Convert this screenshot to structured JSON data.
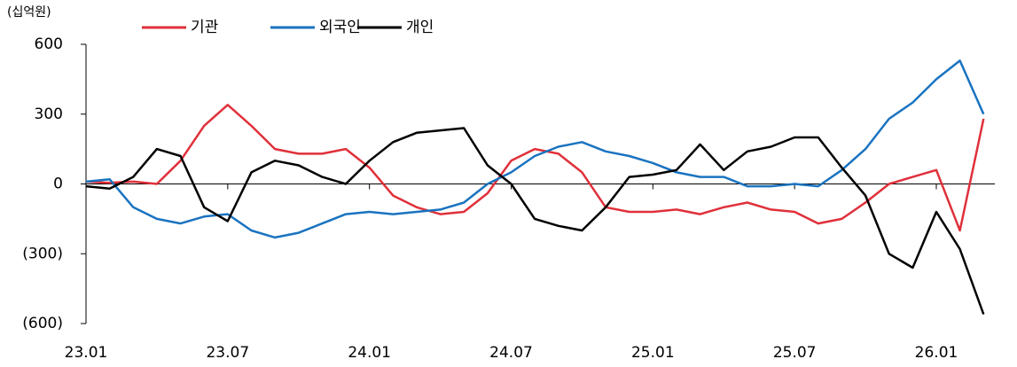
{
  "chart_data": {
    "type": "line",
    "unit": "(십억원)",
    "x": [
      "23.01",
      "23.02",
      "23.03",
      "23.04",
      "23.05",
      "23.06",
      "23.07",
      "23.08",
      "23.09",
      "23.10",
      "23.11",
      "23.12",
      "24.01",
      "24.02",
      "24.03",
      "24.04",
      "24.05",
      "24.06",
      "24.07",
      "24.08",
      "24.09",
      "24.10",
      "24.11",
      "24.12",
      "25.01",
      "25.02",
      "25.03",
      "25.04",
      "25.05",
      "25.06",
      "25.07",
      "25.08",
      "25.09",
      "25.10",
      "25.11",
      "25.12",
      "26.01",
      "26.02",
      "26.03"
    ],
    "series": [
      {
        "name": "기관",
        "color": "#e0303a",
        "values": [
          10,
          5,
          10,
          0,
          100,
          250,
          340,
          250,
          150,
          130,
          130,
          150,
          70,
          -50,
          -100,
          -130,
          -120,
          -40,
          100,
          150,
          130,
          50,
          -100,
          -120,
          -120,
          -110,
          -130,
          -100,
          -80,
          -110,
          -120,
          -170,
          -150,
          -80,
          0,
          30,
          60,
          -200,
          280
        ]
      },
      {
        "name": "외국인",
        "color": "#1a73c0",
        "values": [
          10,
          20,
          -100,
          -150,
          -170,
          -140,
          -130,
          -200,
          -230,
          -210,
          -170,
          -130,
          -120,
          -130,
          -120,
          -110,
          -80,
          0,
          50,
          120,
          160,
          180,
          140,
          120,
          90,
          50,
          30,
          30,
          -10,
          -10,
          0,
          -10,
          60,
          150,
          280,
          350,
          450,
          530,
          300
        ]
      },
      {
        "name": "개인",
        "color": "#000000",
        "values": [
          -10,
          -20,
          30,
          150,
          120,
          -100,
          -160,
          50,
          100,
          80,
          30,
          0,
          100,
          180,
          220,
          230,
          240,
          80,
          0,
          -150,
          -180,
          -200,
          -100,
          30,
          40,
          60,
          170,
          60,
          140,
          160,
          200,
          200,
          70,
          -50,
          -300,
          -360,
          -120,
          -280,
          -560
        ]
      }
    ],
    "xticks": [
      "23.01",
      "23.07",
      "24.01",
      "24.07",
      "25.01",
      "25.07",
      "26.01"
    ],
    "ylim": [
      -600,
      600
    ],
    "yticks": [
      600,
      300,
      0,
      {
        "value": -300,
        "label": "(300)"
      },
      {
        "value": -600,
        "label": "(600)"
      }
    ]
  }
}
